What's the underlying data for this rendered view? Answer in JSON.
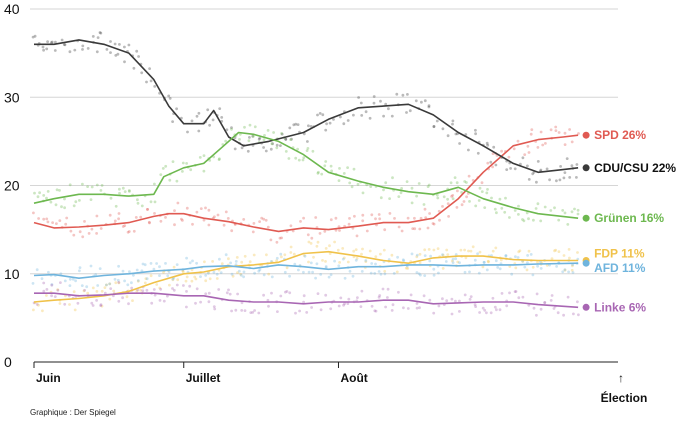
{
  "chart_data": {
    "type": "line",
    "title": "",
    "xlabel": "",
    "ylabel": "",
    "ylim": [
      0,
      40
    ],
    "xlim": [
      "2021-06-01",
      "2021-09-26"
    ],
    "y_ticks": [
      "0",
      "10",
      "20",
      "30",
      "40"
    ],
    "x_ticks": [
      {
        "label": "Juin",
        "date": "2021-06-01"
      },
      {
        "label": "Juillet",
        "date": "2021-07-01"
      },
      {
        "label": "Août",
        "date": "2021-08-01"
      }
    ],
    "grid": true,
    "annotation": {
      "label": "Élection",
      "arrow": "↑",
      "date": "2021-09-26"
    },
    "credit": "Graphique : Der Spiegel",
    "series": [
      {
        "name": "SPD",
        "end_label": "SPD 26%",
        "color": "#e05a52",
        "points": [
          [
            "2021-06-01",
            15.8
          ],
          [
            "2021-06-05",
            15.2
          ],
          [
            "2021-06-10",
            15.3
          ],
          [
            "2021-06-15",
            15.5
          ],
          [
            "2021-06-20",
            15.8
          ],
          [
            "2021-06-25",
            16.5
          ],
          [
            "2021-06-28",
            16.8
          ],
          [
            "2021-07-01",
            16.8
          ],
          [
            "2021-07-05",
            16.3
          ],
          [
            "2021-07-10",
            15.9
          ],
          [
            "2021-07-15",
            15.3
          ],
          [
            "2021-07-20",
            14.8
          ],
          [
            "2021-07-25",
            15.2
          ],
          [
            "2021-07-30",
            15.0
          ],
          [
            "2021-08-05",
            15.4
          ],
          [
            "2021-08-10",
            15.8
          ],
          [
            "2021-08-15",
            15.8
          ],
          [
            "2021-08-20",
            16.3
          ],
          [
            "2021-08-25",
            18.5
          ],
          [
            "2021-08-30",
            21.5
          ],
          [
            "2021-09-05",
            24.5
          ],
          [
            "2021-09-10",
            25.2
          ],
          [
            "2021-09-15",
            25.5
          ],
          [
            "2021-09-18",
            25.7
          ]
        ]
      },
      {
        "name": "CDU/CSU",
        "end_label": "CDU/CSU 22%",
        "color": "#3a3a3a",
        "points": [
          [
            "2021-06-01",
            36.0
          ],
          [
            "2021-06-05",
            36.0
          ],
          [
            "2021-06-10",
            36.5
          ],
          [
            "2021-06-15",
            36.0
          ],
          [
            "2021-06-20",
            35.0
          ],
          [
            "2021-06-25",
            32.0
          ],
          [
            "2021-06-28",
            29.0
          ],
          [
            "2021-07-01",
            27.0
          ],
          [
            "2021-07-05",
            27.0
          ],
          [
            "2021-07-07",
            28.5
          ],
          [
            "2021-07-10",
            25.5
          ],
          [
            "2021-07-13",
            24.5
          ],
          [
            "2021-07-18",
            25.0
          ],
          [
            "2021-07-25",
            26.0
          ],
          [
            "2021-07-30",
            27.5
          ],
          [
            "2021-08-05",
            28.8
          ],
          [
            "2021-08-10",
            29.0
          ],
          [
            "2021-08-15",
            29.2
          ],
          [
            "2021-08-20",
            28.0
          ],
          [
            "2021-08-25",
            26.0
          ],
          [
            "2021-08-30",
            24.5
          ],
          [
            "2021-09-05",
            22.5
          ],
          [
            "2021-09-10",
            21.5
          ],
          [
            "2021-09-15",
            21.8
          ],
          [
            "2021-09-18",
            22.0
          ]
        ]
      },
      {
        "name": "Grünen",
        "end_label": "Grünen 16%",
        "color": "#6db84f",
        "points": [
          [
            "2021-06-01",
            18.0
          ],
          [
            "2021-06-05",
            18.5
          ],
          [
            "2021-06-10",
            19.0
          ],
          [
            "2021-06-15",
            19.0
          ],
          [
            "2021-06-20",
            18.8
          ],
          [
            "2021-06-25",
            19.0
          ],
          [
            "2021-06-27",
            21.0
          ],
          [
            "2021-07-01",
            22.0
          ],
          [
            "2021-07-05",
            22.5
          ],
          [
            "2021-07-09",
            24.5
          ],
          [
            "2021-07-12",
            26.0
          ],
          [
            "2021-07-15",
            25.8
          ],
          [
            "2021-07-20",
            25.0
          ],
          [
            "2021-07-25",
            23.5
          ],
          [
            "2021-07-30",
            21.5
          ],
          [
            "2021-08-05",
            20.5
          ],
          [
            "2021-08-10",
            19.8
          ],
          [
            "2021-08-15",
            19.3
          ],
          [
            "2021-08-20",
            19.0
          ],
          [
            "2021-08-25",
            19.8
          ],
          [
            "2021-08-30",
            18.5
          ],
          [
            "2021-09-05",
            17.5
          ],
          [
            "2021-09-10",
            16.8
          ],
          [
            "2021-09-18",
            16.3
          ]
        ]
      },
      {
        "name": "FDP",
        "end_label": "FDP 11%",
        "color": "#f0c24a",
        "points": [
          [
            "2021-06-01",
            6.8
          ],
          [
            "2021-06-05",
            7.0
          ],
          [
            "2021-06-10",
            7.2
          ],
          [
            "2021-06-15",
            7.5
          ],
          [
            "2021-06-20",
            8.0
          ],
          [
            "2021-06-25",
            9.0
          ],
          [
            "2021-07-01",
            10.0
          ],
          [
            "2021-07-05",
            10.2
          ],
          [
            "2021-07-10",
            10.8
          ],
          [
            "2021-07-15",
            11.0
          ],
          [
            "2021-07-20",
            11.3
          ],
          [
            "2021-07-25",
            12.3
          ],
          [
            "2021-07-30",
            12.5
          ],
          [
            "2021-08-05",
            12.0
          ],
          [
            "2021-08-10",
            11.5
          ],
          [
            "2021-08-15",
            11.2
          ],
          [
            "2021-08-20",
            11.8
          ],
          [
            "2021-08-25",
            12.0
          ],
          [
            "2021-08-30",
            12.0
          ],
          [
            "2021-09-05",
            11.6
          ],
          [
            "2021-09-10",
            11.5
          ],
          [
            "2021-09-18",
            11.5
          ]
        ]
      },
      {
        "name": "AFD",
        "end_label": "AFD 11%",
        "color": "#6fb4dd",
        "points": [
          [
            "2021-06-01",
            9.8
          ],
          [
            "2021-06-05",
            9.9
          ],
          [
            "2021-06-10",
            9.5
          ],
          [
            "2021-06-15",
            9.8
          ],
          [
            "2021-06-20",
            10.0
          ],
          [
            "2021-06-25",
            10.3
          ],
          [
            "2021-07-01",
            10.5
          ],
          [
            "2021-07-05",
            10.8
          ],
          [
            "2021-07-10",
            10.9
          ],
          [
            "2021-07-15",
            10.6
          ],
          [
            "2021-07-20",
            11.0
          ],
          [
            "2021-07-25",
            10.8
          ],
          [
            "2021-07-30",
            10.5
          ],
          [
            "2021-08-05",
            10.8
          ],
          [
            "2021-08-10",
            10.8
          ],
          [
            "2021-08-15",
            11.0
          ],
          [
            "2021-08-20",
            11.0
          ],
          [
            "2021-08-25",
            10.9
          ],
          [
            "2021-08-30",
            11.0
          ],
          [
            "2021-09-05",
            11.0
          ],
          [
            "2021-09-10",
            11.1
          ],
          [
            "2021-09-18",
            11.2
          ]
        ]
      },
      {
        "name": "Linke",
        "end_label": "Linke 6%",
        "color": "#a866b3",
        "points": [
          [
            "2021-06-01",
            7.8
          ],
          [
            "2021-06-05",
            7.8
          ],
          [
            "2021-06-10",
            7.5
          ],
          [
            "2021-06-15",
            7.6
          ],
          [
            "2021-06-20",
            7.8
          ],
          [
            "2021-06-25",
            7.8
          ],
          [
            "2021-07-01",
            7.5
          ],
          [
            "2021-07-05",
            7.5
          ],
          [
            "2021-07-10",
            7.0
          ],
          [
            "2021-07-15",
            6.8
          ],
          [
            "2021-07-20",
            6.8
          ],
          [
            "2021-07-25",
            6.6
          ],
          [
            "2021-07-30",
            6.8
          ],
          [
            "2021-08-05",
            6.8
          ],
          [
            "2021-08-10",
            7.0
          ],
          [
            "2021-08-15",
            7.0
          ],
          [
            "2021-08-20",
            6.6
          ],
          [
            "2021-08-25",
            6.7
          ],
          [
            "2021-08-30",
            6.8
          ],
          [
            "2021-09-05",
            6.8
          ],
          [
            "2021-09-10",
            6.5
          ],
          [
            "2021-09-18",
            6.2
          ]
        ]
      }
    ]
  }
}
